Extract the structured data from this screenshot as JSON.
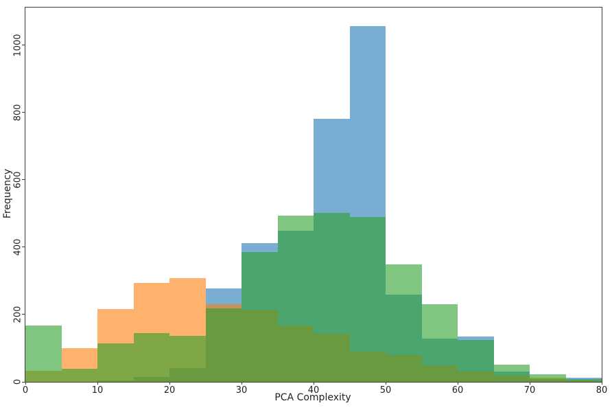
{
  "chart_data": {
    "type": "bar",
    "variant": "overlaid-histogram",
    "title": "",
    "xlabel": "PCA Complexity",
    "ylabel": "Frequency",
    "xlim": [
      0,
      80
    ],
    "ylim": [
      0,
      1112
    ],
    "xticks": [
      0,
      10,
      20,
      30,
      40,
      50,
      60,
      70,
      80
    ],
    "yticks": [
      0,
      200,
      400,
      600,
      800,
      1000
    ],
    "ytick_rotation_deg": -90,
    "grid": false,
    "legend": false,
    "bin_width": 5,
    "bin_edges": [
      0,
      5,
      10,
      15,
      20,
      25,
      30,
      35,
      40,
      45,
      50,
      55,
      60,
      65,
      70,
      75,
      80
    ],
    "series": [
      {
        "name": "blue",
        "color": "#1f77b4",
        "alpha": 0.6,
        "values": [
          0,
          0,
          5,
          14,
          40,
          277,
          412,
          449,
          781,
          1057,
          260,
          128,
          135,
          30,
          8,
          12
        ]
      },
      {
        "name": "orange",
        "color": "#ff7f0e",
        "alpha": 0.6,
        "values": [
          33,
          100,
          216,
          293,
          308,
          231,
          214,
          167,
          143,
          90,
          80,
          48,
          30,
          18,
          12,
          4
        ]
      },
      {
        "name": "green",
        "color": "#2ca02c",
        "alpha": 0.6,
        "values": [
          167,
          38,
          115,
          145,
          137,
          218,
          386,
          494,
          502,
          490,
          348,
          230,
          124,
          51,
          22,
          8
        ]
      }
    ]
  }
}
